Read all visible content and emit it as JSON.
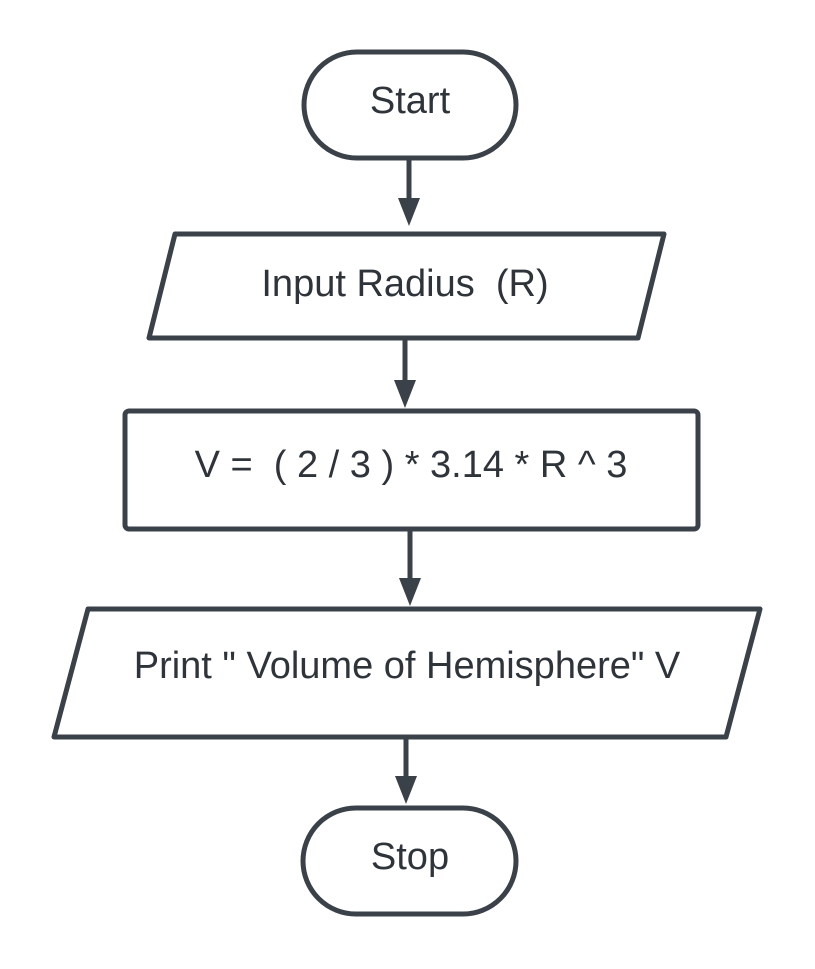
{
  "nodes": {
    "start": {
      "label": "Start",
      "shape": "terminator"
    },
    "input": {
      "label": "Input Radius  (R)",
      "shape": "input-output"
    },
    "process": {
      "label": "V =  ( 2 / 3 ) * 3.14 * R ^ 3",
      "shape": "process"
    },
    "output": {
      "label": "Print \" Volume of Hemisphere\" V",
      "shape": "input-output"
    },
    "stop": {
      "label": "Stop",
      "shape": "terminator"
    }
  },
  "edges": [
    {
      "from": "start",
      "to": "input"
    },
    {
      "from": "input",
      "to": "process"
    },
    {
      "from": "process",
      "to": "output"
    },
    {
      "from": "output",
      "to": "stop"
    }
  ],
  "colors": {
    "stroke": "#3b4148",
    "text": "#2f343a",
    "background": "#ffffff"
  }
}
